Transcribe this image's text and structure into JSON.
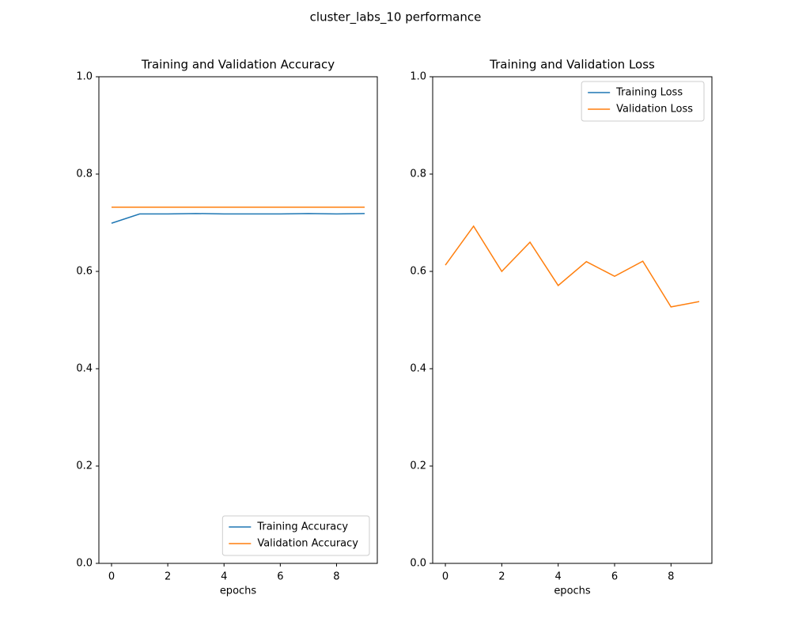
{
  "title": "cluster_labs_10 performance",
  "chart_data": [
    {
      "type": "line",
      "title": "Training and Validation Accuracy",
      "xlabel": "epochs",
      "x": [
        0,
        1,
        2,
        3,
        4,
        5,
        6,
        7,
        8,
        9
      ],
      "series": [
        {
          "name": "Training Accuracy",
          "color": "#1f77b4",
          "values": [
            0.699,
            0.718,
            0.718,
            0.719,
            0.718,
            0.718,
            0.718,
            0.719,
            0.718,
            0.719
          ]
        },
        {
          "name": "Validation Accuracy",
          "color": "#ff7f0e",
          "values": [
            0.732,
            0.732,
            0.732,
            0.732,
            0.732,
            0.732,
            0.732,
            0.732,
            0.732,
            0.732
          ]
        }
      ],
      "xlim": [
        -0.45,
        9.45
      ],
      "xticks": [
        0,
        2,
        4,
        6,
        8
      ],
      "ylim": [
        0,
        1
      ],
      "yticks": [
        {
          "value": 0,
          "label": "0.0"
        },
        0.2,
        0.4,
        0.6,
        0.8,
        {
          "value": 1,
          "label": "1.0"
        }
      ],
      "legend": "lower right"
    },
    {
      "type": "line",
      "title": "Training and Validation Loss",
      "xlabel": "epochs",
      "x": [
        0,
        1,
        2,
        3,
        4,
        5,
        6,
        7,
        8,
        9
      ],
      "series": [
        {
          "name": "Training Loss",
          "color": "#1f77b4",
          "values": [
            null,
            null,
            null,
            null,
            null,
            null,
            null,
            null,
            null,
            null
          ]
        },
        {
          "name": "Validation Loss",
          "color": "#ff7f0e",
          "values": [
            0.613,
            0.693,
            0.6,
            0.66,
            0.571,
            0.62,
            0.59,
            0.621,
            0.527,
            0.538
          ]
        }
      ],
      "xlim": [
        -0.45,
        9.45
      ],
      "xticks": [
        0,
        2,
        4,
        6,
        8
      ],
      "ylim": [
        0,
        1
      ],
      "yticks": [
        {
          "value": 0,
          "label": "0.0"
        },
        0.2,
        0.4,
        0.6,
        0.8,
        {
          "value": 1,
          "label": "1.0"
        }
      ],
      "legend": "upper right"
    }
  ]
}
